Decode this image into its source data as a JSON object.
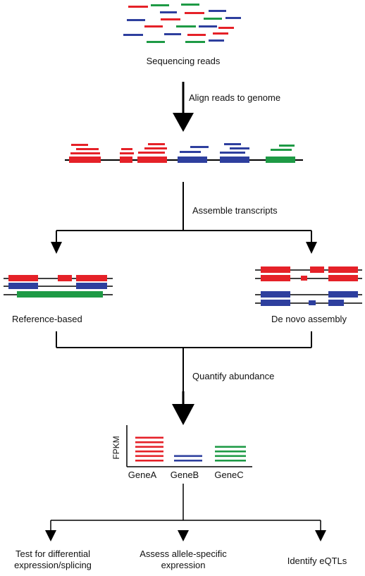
{
  "colors": {
    "red": "#e52128",
    "blue": "#2e3f9e",
    "green": "#1e9a45",
    "line": "#000000"
  },
  "labels": {
    "sequencing_reads": "Sequencing reads",
    "align_step": "Align reads to genome",
    "assemble_step": "Assemble transcripts",
    "reference_based": "Reference-based",
    "de_novo": "De novo assembly",
    "quantify_step": "Quantify abundance",
    "fpkm_axis": "FPKM",
    "outputs": {
      "differential_line1": "Test for differential",
      "differential_line2": "expression/splicing",
      "allele_line1": "Assess allele-specific",
      "allele_line2": "expression",
      "eqtl": "Identify eQTLs"
    }
  },
  "chart_data": {
    "type": "bar",
    "categories": [
      "GeneA",
      "GeneB",
      "GeneC"
    ],
    "values": [
      6,
      2,
      4
    ],
    "ylabel": "FPKM",
    "series_colors": [
      "red",
      "blue",
      "green"
    ]
  }
}
